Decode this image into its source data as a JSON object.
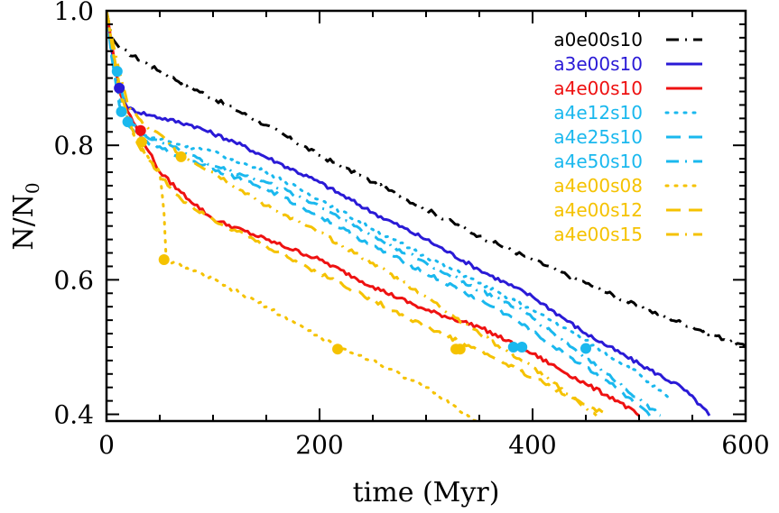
{
  "chart_data": {
    "type": "line",
    "title": "",
    "xlabel": "time (Myr)",
    "ylabel_main": "N/N",
    "ylabel_sub": "0",
    "xlim": [
      0,
      600
    ],
    "ylim": [
      0.39,
      1.0
    ],
    "xticks": [
      0,
      200,
      400,
      600
    ],
    "xtick_labels": [
      "0",
      "200",
      "400",
      "600"
    ],
    "yticks": [
      0.4,
      0.6,
      0.8,
      1.0
    ],
    "ytick_labels": [
      "0.4",
      "0.6",
      "0.8",
      "1.0"
    ],
    "legend_position": "top-right",
    "series": [
      {
        "name": "a0e00s10",
        "color": "#000000",
        "dash": "dashdot",
        "x": [
          0,
          5,
          12,
          50,
          100,
          150,
          200,
          250,
          300,
          350,
          400,
          450,
          500,
          550,
          600
        ],
        "y": [
          1.0,
          0.96,
          0.945,
          0.91,
          0.87,
          0.83,
          0.785,
          0.745,
          0.705,
          0.665,
          0.63,
          0.595,
          0.56,
          0.53,
          0.5
        ],
        "markers": []
      },
      {
        "name": "a3e00s10",
        "color": "#2a1ad6",
        "dash": "solid",
        "x": [
          0,
          5,
          12,
          20,
          40,
          80,
          120,
          160,
          200,
          250,
          300,
          350,
          400,
          450,
          500,
          540,
          560,
          566
        ],
        "y": [
          1.0,
          0.94,
          0.885,
          0.855,
          0.845,
          0.83,
          0.805,
          0.775,
          0.745,
          0.7,
          0.66,
          0.615,
          0.575,
          0.52,
          0.475,
          0.44,
          0.41,
          0.398
        ],
        "markers": [
          {
            "x": 12,
            "y": 0.885
          }
        ]
      },
      {
        "name": "a4e00s10",
        "color": "#ee1111",
        "dash": "solid",
        "x": [
          0,
          5,
          12,
          20,
          30,
          40,
          50,
          70,
          100,
          150,
          200,
          250,
          300,
          350,
          400,
          450,
          480,
          500
        ],
        "y": [
          1.0,
          0.95,
          0.88,
          0.85,
          0.82,
          0.79,
          0.76,
          0.73,
          0.69,
          0.66,
          0.63,
          0.59,
          0.555,
          0.53,
          0.49,
          0.445,
          0.42,
          0.398
        ],
        "markers": [
          {
            "x": 32,
            "y": 0.822
          }
        ]
      },
      {
        "name": "a4e12s10",
        "color": "#1ab8ee",
        "dash": "dotted",
        "x": [
          0,
          5,
          12,
          20,
          35,
          60,
          100,
          150,
          200,
          250,
          300,
          350,
          400,
          450,
          500,
          530
        ],
        "y": [
          1.0,
          0.93,
          0.87,
          0.84,
          0.815,
          0.805,
          0.79,
          0.76,
          0.72,
          0.675,
          0.635,
          0.595,
          0.555,
          0.51,
          0.46,
          0.42
        ],
        "markers": [
          {
            "x": 20,
            "y": 0.835
          }
        ]
      },
      {
        "name": "a4e25s10",
        "color": "#1ab8ee",
        "dash": "dashed",
        "x": [
          0,
          5,
          12,
          20,
          35,
          60,
          100,
          150,
          200,
          250,
          300,
          350,
          380,
          420,
          470,
          510
        ],
        "y": [
          1.0,
          0.93,
          0.86,
          0.83,
          0.805,
          0.79,
          0.765,
          0.735,
          0.695,
          0.65,
          0.61,
          0.57,
          0.545,
          0.5,
          0.45,
          0.398
        ],
        "markers": [
          {
            "x": 382,
            "y": 0.5
          }
        ]
      },
      {
        "name": "a4e50s10",
        "color": "#1ab8ee",
        "dash": "dashdot",
        "x": [
          0,
          5,
          10,
          20,
          35,
          60,
          100,
          150,
          200,
          250,
          300,
          350,
          390,
          420,
          470,
          520
        ],
        "y": [
          1.0,
          0.95,
          0.91,
          0.84,
          0.815,
          0.8,
          0.77,
          0.745,
          0.71,
          0.665,
          0.625,
          0.585,
          0.555,
          0.52,
          0.46,
          0.398
        ],
        "markers": [
          {
            "x": 10,
            "y": 0.91
          },
          {
            "x": 14,
            "y": 0.85
          },
          {
            "x": 390,
            "y": 0.5
          },
          {
            "x": 450,
            "y": 0.498
          }
        ]
      },
      {
        "name": "a4e00s08",
        "color": "#f5c200",
        "dash": "dotted",
        "x": [
          0,
          5,
          12,
          20,
          30,
          40,
          50,
          54,
          56,
          100,
          150,
          217,
          250,
          300,
          347
        ],
        "y": [
          1.0,
          0.95,
          0.88,
          0.84,
          0.8,
          0.78,
          0.76,
          0.7,
          0.63,
          0.6,
          0.56,
          0.5,
          0.48,
          0.44,
          0.39
        ],
        "markers": [
          {
            "x": 54,
            "y": 0.63
          },
          {
            "x": 217,
            "y": 0.497
          }
        ]
      },
      {
        "name": "a4e00s12",
        "color": "#f5c200",
        "dash": "dashed",
        "x": [
          0,
          5,
          12,
          20,
          30,
          50,
          70,
          100,
          150,
          200,
          250,
          300,
          350,
          400,
          450,
          470
        ],
        "y": [
          1.0,
          0.95,
          0.89,
          0.84,
          0.8,
          0.755,
          0.72,
          0.69,
          0.65,
          0.61,
          0.57,
          0.53,
          0.495,
          0.455,
          0.415,
          0.398
        ],
        "markers": [
          {
            "x": 33,
            "y": 0.805
          },
          {
            "x": 328,
            "y": 0.497
          }
        ]
      },
      {
        "name": "a4e00s15",
        "color": "#f5c200",
        "dash": "dashdot",
        "x": [
          0,
          5,
          12,
          20,
          35,
          55,
          70,
          100,
          150,
          200,
          250,
          300,
          350,
          400,
          450,
          460
        ],
        "y": [
          1.0,
          0.96,
          0.91,
          0.86,
          0.83,
          0.81,
          0.785,
          0.76,
          0.71,
          0.67,
          0.625,
          0.575,
          0.52,
          0.47,
          0.41,
          0.398
        ],
        "markers": [
          {
            "x": 70,
            "y": 0.783
          },
          {
            "x": 332,
            "y": 0.497
          }
        ]
      }
    ]
  }
}
